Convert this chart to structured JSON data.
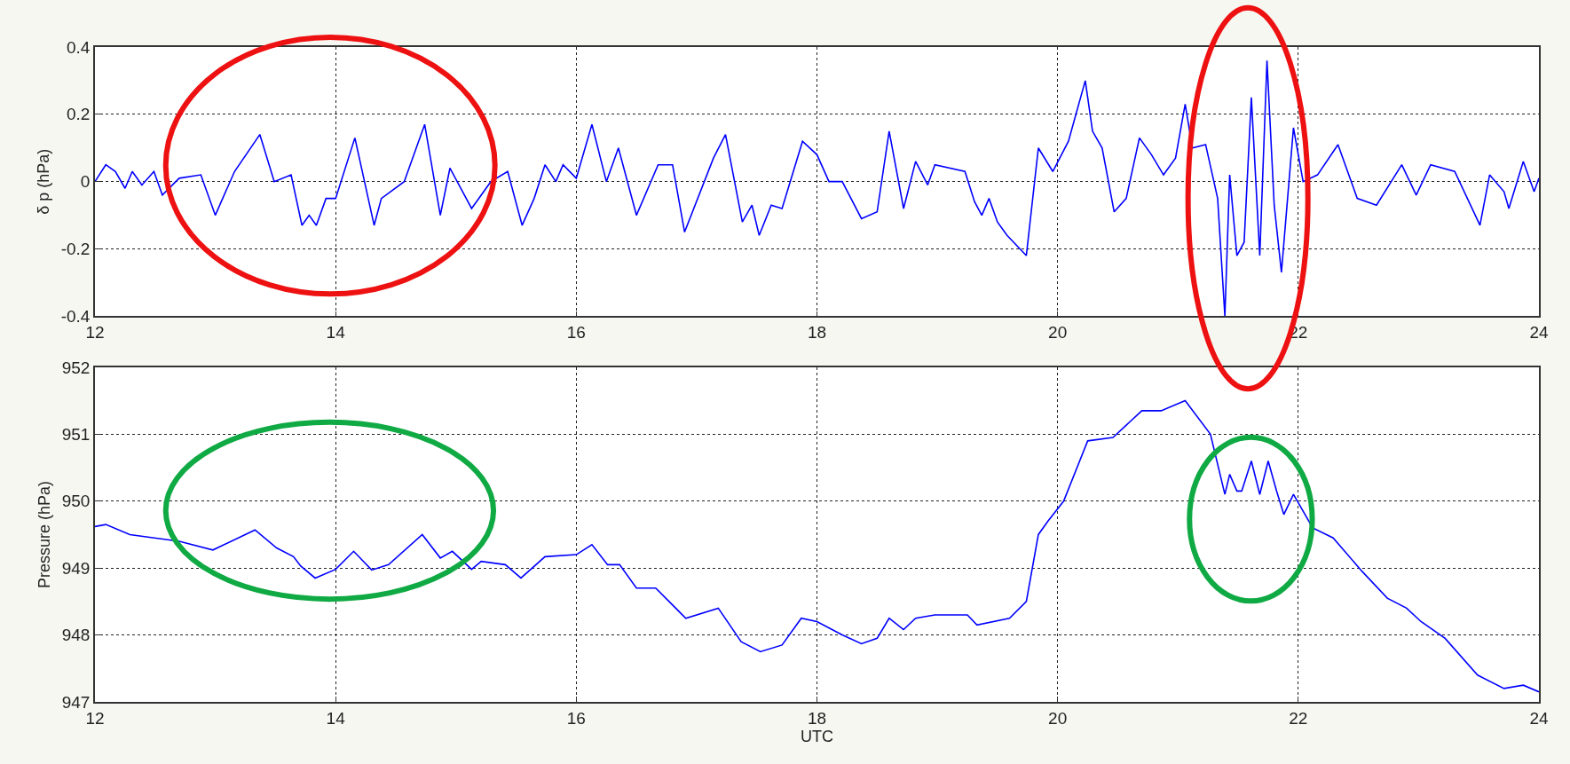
{
  "chart_data": [
    {
      "type": "line",
      "ylabel": "δ p (hPa)",
      "xlim": [
        12,
        24
      ],
      "xticks": [
        12,
        14,
        16,
        18,
        20,
        22,
        24
      ],
      "ylim": [
        -0.4,
        0.4
      ],
      "yticks": [
        -0.4,
        -0.2,
        0,
        0.2,
        0.4
      ],
      "grid": true,
      "line_style": "solid",
      "series": [
        {
          "color": "#0000ff",
          "x": [
            12.0,
            12.09,
            12.17,
            12.25,
            12.31,
            12.39,
            12.49,
            12.56,
            12.7,
            12.88,
            13.0,
            13.16,
            13.37,
            13.49,
            13.63,
            13.72,
            13.78,
            13.84,
            13.92,
            14.0,
            14.16,
            14.32,
            14.38,
            14.57,
            14.74,
            14.87,
            14.95,
            15.13,
            15.29,
            15.43,
            15.55,
            15.65,
            15.74,
            15.83,
            15.89,
            16.0,
            16.13,
            16.25,
            16.35,
            16.5,
            16.68,
            16.8,
            16.9,
            17.14,
            17.24,
            17.38,
            17.46,
            17.52,
            17.62,
            17.71,
            17.88,
            18.0,
            18.1,
            18.21,
            18.37,
            18.5,
            18.6,
            18.72,
            18.82,
            18.92,
            18.98,
            19.23,
            19.31,
            19.37,
            19.43,
            19.5,
            19.58,
            19.74,
            19.84,
            19.96,
            20.09,
            20.23,
            20.29,
            20.37,
            20.47,
            20.57,
            20.68,
            20.78,
            20.88,
            20.98,
            21.06,
            21.12,
            21.23,
            21.33,
            21.39,
            21.43,
            21.49,
            21.55,
            21.61,
            21.68,
            21.74,
            21.8,
            21.86,
            21.96,
            22.04,
            22.16,
            22.33,
            22.49,
            22.65,
            22.86,
            22.98,
            23.1,
            23.3,
            23.51,
            23.59,
            23.71,
            23.75,
            23.87,
            23.96,
            24.0
          ],
          "values": [
            0.0,
            0.05,
            0.03,
            -0.02,
            0.03,
            -0.01,
            0.03,
            -0.04,
            0.01,
            0.02,
            -0.1,
            0.03,
            0.14,
            0.0,
            0.02,
            -0.13,
            -0.1,
            -0.13,
            -0.05,
            -0.05,
            0.13,
            -0.13,
            -0.05,
            0.0,
            0.17,
            -0.1,
            0.04,
            -0.08,
            0.0,
            0.03,
            -0.13,
            -0.05,
            0.05,
            0.0,
            0.05,
            0.01,
            0.17,
            0.0,
            0.1,
            -0.1,
            0.05,
            0.05,
            -0.15,
            0.07,
            0.14,
            -0.12,
            -0.07,
            -0.16,
            -0.07,
            -0.08,
            0.12,
            0.08,
            0.0,
            0.0,
            -0.11,
            -0.09,
            0.15,
            -0.08,
            0.06,
            -0.01,
            0.05,
            0.03,
            -0.06,
            -0.1,
            -0.05,
            -0.12,
            -0.16,
            -0.22,
            0.1,
            0.03,
            0.12,
            0.3,
            0.15,
            0.1,
            -0.09,
            -0.05,
            0.13,
            0.08,
            0.02,
            0.07,
            0.23,
            0.1,
            0.11,
            -0.05,
            -0.4,
            0.02,
            -0.22,
            -0.18,
            0.25,
            -0.22,
            0.36,
            -0.07,
            -0.27,
            0.16,
            0.0,
            0.02,
            0.11,
            -0.05,
            -0.07,
            0.05,
            -0.04,
            0.05,
            0.03,
            -0.13,
            0.02,
            -0.03,
            -0.08,
            0.06,
            -0.03,
            0.01
          ]
        }
      ]
    },
    {
      "type": "line",
      "xlabel": "UTC",
      "ylabel": "Pressure (hPa)",
      "xlim": [
        12,
        24
      ],
      "xticks": [
        12,
        14,
        16,
        18,
        20,
        22,
        24
      ],
      "ylim": [
        947,
        952
      ],
      "yticks": [
        947,
        948,
        949,
        950,
        951,
        952
      ],
      "grid": true,
      "line_style": "solid",
      "series": [
        {
          "color": "#0000ff",
          "x": [
            12.0,
            12.09,
            12.29,
            12.7,
            12.98,
            13.33,
            13.51,
            13.65,
            13.71,
            13.83,
            14.0,
            14.15,
            14.3,
            14.44,
            14.72,
            14.87,
            14.97,
            15.13,
            15.21,
            15.41,
            15.54,
            15.74,
            16.0,
            16.13,
            16.26,
            16.36,
            16.5,
            16.66,
            16.91,
            17.18,
            17.37,
            17.53,
            17.71,
            17.87,
            18.0,
            18.21,
            18.37,
            18.5,
            18.6,
            18.72,
            18.82,
            18.98,
            19.25,
            19.33,
            19.6,
            19.74,
            19.84,
            19.92,
            20.05,
            20.25,
            20.46,
            20.7,
            20.86,
            21.06,
            21.27,
            21.39,
            21.43,
            21.49,
            21.53,
            21.61,
            21.68,
            21.75,
            21.82,
            21.88,
            21.96,
            22.12,
            22.29,
            22.53,
            22.74,
            22.9,
            23.02,
            23.22,
            23.49,
            23.71,
            23.87,
            24.0
          ],
          "values": [
            949.62,
            949.65,
            949.5,
            949.4,
            949.27,
            949.57,
            949.3,
            949.17,
            949.03,
            948.85,
            948.98,
            949.25,
            948.97,
            949.05,
            949.5,
            949.15,
            949.25,
            948.98,
            949.1,
            949.05,
            948.85,
            949.17,
            949.2,
            949.35,
            949.05,
            949.05,
            948.7,
            948.7,
            948.25,
            948.4,
            947.9,
            947.75,
            947.85,
            948.25,
            948.2,
            948.0,
            947.87,
            947.95,
            948.25,
            948.08,
            948.25,
            948.3,
            948.3,
            948.15,
            948.25,
            948.5,
            949.5,
            949.7,
            950.0,
            950.9,
            950.95,
            951.35,
            951.35,
            951.5,
            951.0,
            950.1,
            950.4,
            950.15,
            950.15,
            950.6,
            950.1,
            950.6,
            950.15,
            949.8,
            950.1,
            949.6,
            949.45,
            948.95,
            948.55,
            948.4,
            948.2,
            947.95,
            947.4,
            947.2,
            947.25,
            947.15
          ]
        }
      ]
    }
  ]
}
